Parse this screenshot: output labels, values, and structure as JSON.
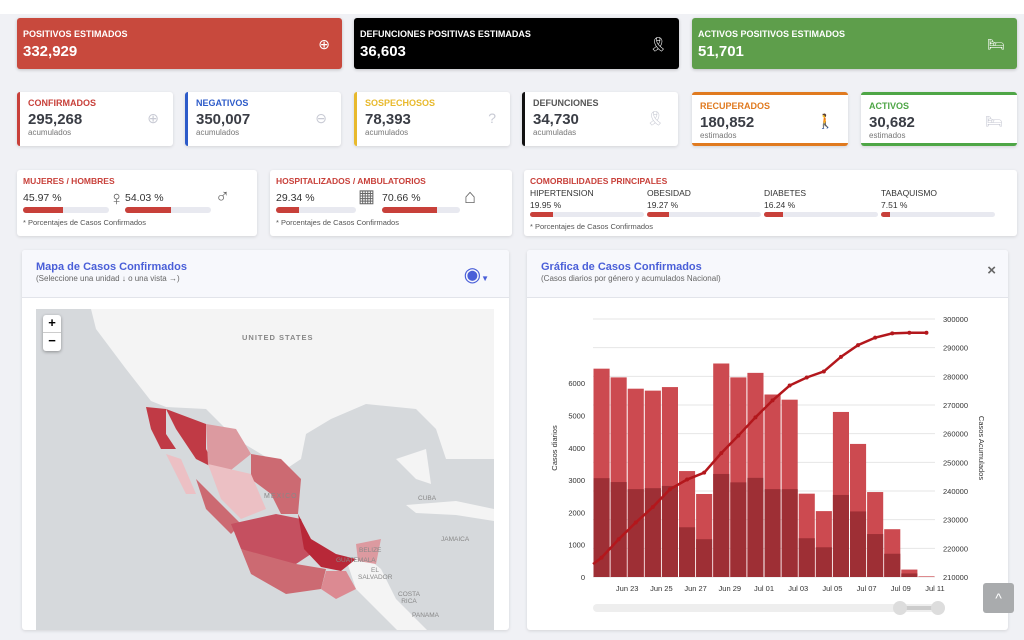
{
  "top_cards": [
    {
      "title": "POSITIVOS ESTIMADOS",
      "value": "332,929",
      "icon": "plus-circle-icon",
      "color": "#c8493d"
    },
    {
      "title": "DEFUNCIONES POSITIVAS ESTIMADAS",
      "value": "36,603",
      "icon": "ribbon-icon",
      "color": "#000000"
    },
    {
      "title": "ACTIVOS POSITIVOS ESTIMADOS",
      "value": "51,701",
      "icon": "bed-icon",
      "color": "#5e9e4b"
    }
  ],
  "cards": [
    {
      "title": "CONFIRMADOS",
      "value": "295,268",
      "sub": "acumulados",
      "icon": "plus-circle-icon",
      "color": "#c8403a"
    },
    {
      "title": "NEGATIVOS",
      "value": "350,007",
      "sub": "acumulados",
      "icon": "minus-circle-icon",
      "color": "#2d5bc9"
    },
    {
      "title": "SOSPECHOSOS",
      "value": "78,393",
      "sub": "acumulados",
      "icon": "question-circle-icon",
      "color": "#e8b92c"
    },
    {
      "title": "DEFUNCIONES",
      "value": "34,730",
      "sub": "acumuladas",
      "icon": "ribbon-icon",
      "color": "#111111"
    },
    {
      "title": "RECUPERADOS",
      "value": "180,852",
      "sub": "estimados",
      "icon": "walking-icon",
      "color": "#e07a1f"
    },
    {
      "title": "ACTIVOS",
      "value": "30,682",
      "sub": "estimados",
      "icon": "bed-icon",
      "color": "#4ea646"
    }
  ],
  "gender": {
    "title": "MUJERES / HOMBRES",
    "women": "45.97 %",
    "men": "54.03 %",
    "women_pct": 45.97,
    "men_pct": 54.03,
    "footnote": "* Porcentajes de Casos Confirmados"
  },
  "hospital": {
    "title": "HOSPITALIZADOS / AMBULATORIOS",
    "hosp": "29.34 %",
    "amb": "70.66 %",
    "hosp_pct": 29.34,
    "amb_pct": 70.66,
    "footnote": "* Porcentajes de Casos Confirmados"
  },
  "comorb": {
    "title": "COMORBILIDADES PRINCIPALES",
    "items": [
      {
        "label": "HIPERTENSION",
        "value": "19.95 %",
        "pct": 19.95
      },
      {
        "label": "OBESIDAD",
        "value": "19.27 %",
        "pct": 19.27
      },
      {
        "label": "DIABETES",
        "value": "16.24 %",
        "pct": 16.24
      },
      {
        "label": "TABAQUISMO",
        "value": "7.51 %",
        "pct": 7.51
      }
    ],
    "footnote": "* Porcentajes de Casos Confirmados"
  },
  "map_panel": {
    "title": "Mapa de Casos Confirmados",
    "subtitle": "(Seleccione una unidad ↓ o una vista →)",
    "zoom_in": "+",
    "zoom_out": "−",
    "labels": {
      "us": "UNITED STATES",
      "mexico": "MEXICO",
      "cuba": "CUBA",
      "jamaica": "JAMAICA",
      "belize": "BELIZE",
      "guatemala": "GUATEMALA",
      "salvador": "EL SALVADOR",
      "costa_rica": "COSTA RICA",
      "panama": "PANAMA"
    }
  },
  "chart_panel": {
    "title": "Gráfica de Casos Confirmados",
    "subtitle": "(Casos diarios por género y acumulados Nacional)",
    "close": "×"
  },
  "chart_data": {
    "type": "bar",
    "xlabel": "",
    "ylabel": "Casos diarios",
    "y2label": "Casos Acumulados",
    "categories": [
      "Jun 22",
      "Jun 23",
      "Jun 24",
      "Jun 25",
      "Jun 26",
      "Jun 27",
      "Jun 28",
      "Jun 29",
      "Jun 30",
      "Jul 01",
      "Jul 02",
      "Jul 03",
      "Jul 04",
      "Jul 05",
      "Jul 06",
      "Jul 07",
      "Jul 08",
      "Jul 09",
      "Jul 10",
      "Jul 11"
    ],
    "tick_labels": [
      "Jun 23",
      "Jun 25",
      "Jun 27",
      "Jun 29",
      "Jul 01",
      "Jul 03",
      "Jul 05",
      "Jul 07",
      "Jul 09",
      "Jul 11"
    ],
    "ylim": [
      0,
      8000
    ],
    "y2lim": [
      210000,
      300000
    ],
    "yticks": [
      0,
      1000,
      2000,
      3000,
      4000,
      5000,
      6000
    ],
    "y2ticks": [
      210000,
      220000,
      230000,
      240000,
      250000,
      260000,
      270000,
      280000,
      290000,
      300000
    ],
    "series": [
      {
        "type": "bar",
        "color": "#cc4a50",
        "values": [
          6450,
          6180,
          5830,
          5770,
          5880,
          3280,
          2570,
          6610,
          6180,
          6320,
          5650,
          5490,
          2580,
          2040,
          5110,
          4120,
          2630,
          1480,
          230,
          20
        ]
      },
      {
        "type": "bar",
        "color": "#9e2f35",
        "values": [
          3060,
          2940,
          2720,
          2750,
          2820,
          1540,
          1170,
          3190,
          2930,
          3070,
          2720,
          2720,
          1200,
          920,
          2540,
          2030,
          1330,
          720,
          110,
          0
        ]
      },
      {
        "type": "line",
        "axis": "right",
        "color": "#b3171c",
        "values": [
          216750,
          223150,
          229000,
          234400,
          240600,
          244000,
          246400,
          253200,
          259300,
          265700,
          271600,
          276800,
          279600,
          281700,
          286800,
          290900,
          293500,
          295000,
          295200,
          295200
        ]
      }
    ]
  }
}
